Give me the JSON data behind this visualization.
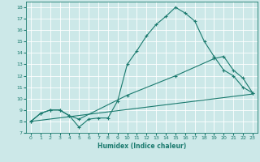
{
  "xlabel": "Humidex (Indice chaleur)",
  "bg_color": "#cce8e8",
  "line_color": "#1a7a6e",
  "grid_color": "#ffffff",
  "xlim": [
    -0.5,
    23.5
  ],
  "ylim": [
    7,
    18.5
  ],
  "yticks": [
    7,
    8,
    9,
    10,
    11,
    12,
    13,
    14,
    15,
    16,
    17,
    18
  ],
  "xticks": [
    0,
    1,
    2,
    3,
    4,
    5,
    6,
    7,
    8,
    9,
    10,
    11,
    12,
    13,
    14,
    15,
    16,
    17,
    18,
    19,
    20,
    21,
    22,
    23
  ],
  "curve1_x": [
    0,
    1,
    2,
    3,
    4,
    5,
    6,
    7,
    8,
    9,
    10,
    11,
    12,
    13,
    14,
    15,
    16,
    17,
    18,
    19,
    20,
    21,
    22,
    23
  ],
  "curve1_y": [
    8.0,
    8.7,
    9.0,
    9.0,
    8.5,
    7.5,
    8.2,
    8.3,
    8.3,
    9.8,
    13.0,
    14.2,
    15.5,
    16.5,
    17.2,
    18.0,
    17.5,
    16.8,
    15.0,
    13.7,
    12.5,
    12.0,
    11.0,
    10.5
  ],
  "curve2_x": [
    0,
    1,
    2,
    3,
    4,
    5,
    10,
    15,
    19,
    20,
    21,
    22,
    23
  ],
  "curve2_y": [
    8.0,
    8.7,
    9.0,
    9.0,
    8.5,
    8.2,
    10.3,
    12.0,
    13.5,
    13.7,
    12.5,
    11.8,
    10.5
  ],
  "curve3_x": [
    0,
    23
  ],
  "curve3_y": [
    8.0,
    10.4
  ]
}
